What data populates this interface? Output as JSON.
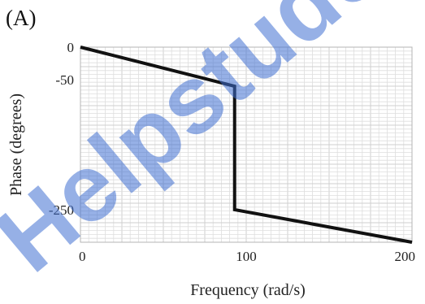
{
  "panel_label": "(A)",
  "watermark": "Helpstudent",
  "chart_data": {
    "type": "line",
    "title": "",
    "xlabel": "Frequency (rad/s)",
    "ylabel": "Phase (degrees)",
    "xlim": [
      0,
      200
    ],
    "ylim": [
      -300,
      0
    ],
    "x_ticks": [
      0,
      100,
      200
    ],
    "y_ticks": [
      0,
      -50,
      -250
    ],
    "x_tick_labels": [
      "0",
      "100",
      "200"
    ],
    "y_tick_labels": [
      "0",
      "-50",
      "-250"
    ],
    "grid": true,
    "legend": "none",
    "series": [
      {
        "x": [
          0,
          93,
          93,
          200
        ],
        "y": [
          0,
          -60,
          -250,
          -300
        ],
        "color": "#111111"
      }
    ]
  }
}
